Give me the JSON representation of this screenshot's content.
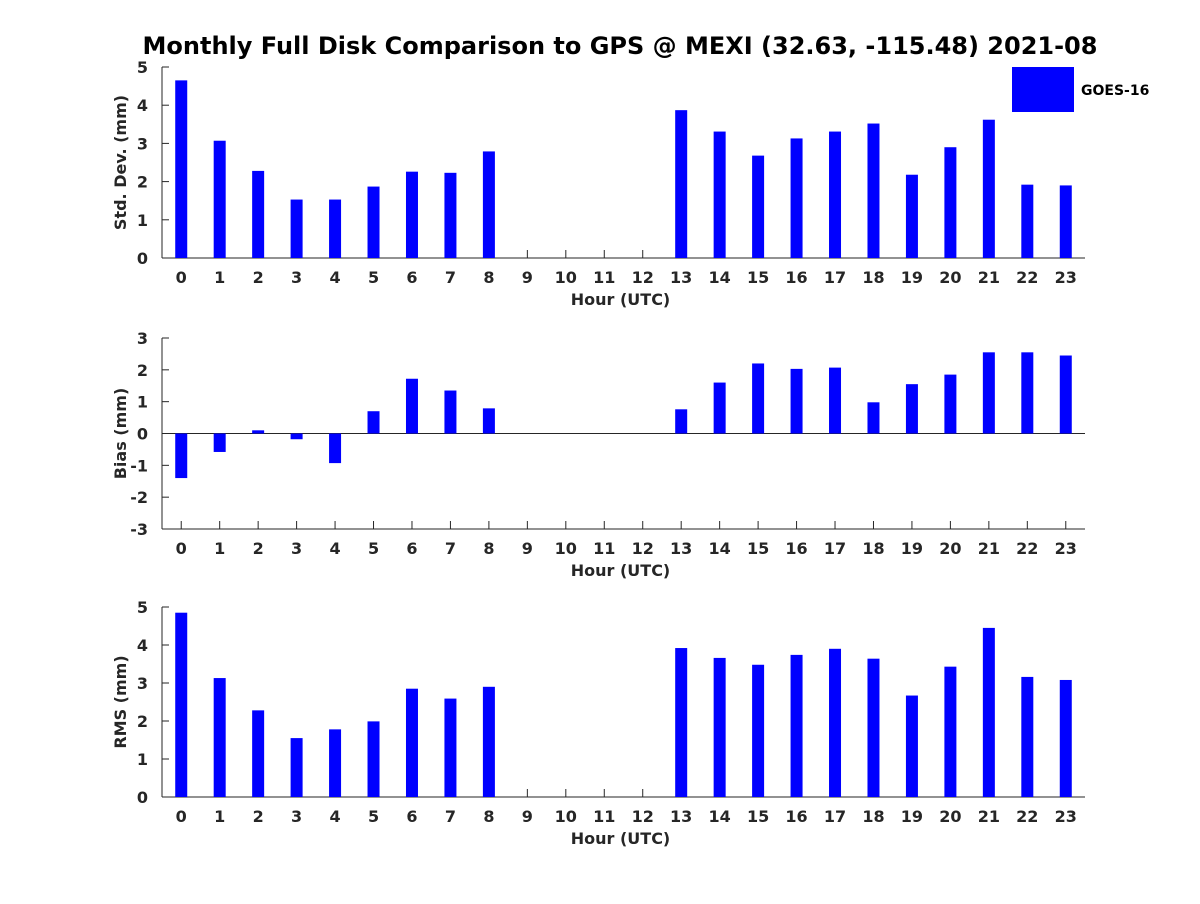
{
  "title": "Monthly Full Disk Comparison to GPS @ MEXI (32.63, -115.48) 2021-08",
  "legend": {
    "label": "GOES-16",
    "color": "#0000ff"
  },
  "bar_color": "#0000ff",
  "chart_data": [
    {
      "type": "bar",
      "xlabel": "Hour (UTC)",
      "ylabel": "Std. Dev. (mm)",
      "ylim": [
        0,
        5
      ],
      "yticks": [
        0,
        1,
        2,
        3,
        4,
        5
      ],
      "categories": [
        "0",
        "1",
        "2",
        "3",
        "4",
        "5",
        "6",
        "7",
        "8",
        "9",
        "10",
        "11",
        "12",
        "13",
        "14",
        "15",
        "16",
        "17",
        "18",
        "19",
        "20",
        "21",
        "22",
        "23"
      ],
      "series": [
        {
          "name": "GOES-16",
          "values": [
            4.65,
            3.07,
            2.28,
            1.53,
            1.53,
            1.87,
            2.26,
            2.23,
            2.79,
            null,
            null,
            null,
            null,
            3.87,
            3.31,
            2.68,
            3.13,
            3.31,
            3.52,
            2.18,
            2.9,
            3.62,
            1.92,
            1.9
          ]
        }
      ]
    },
    {
      "type": "bar",
      "xlabel": "Hour (UTC)",
      "ylabel": "Bias (mm)",
      "ylim": [
        -3,
        3
      ],
      "yticks": [
        -3,
        -2,
        -1,
        0,
        1,
        2,
        3
      ],
      "categories": [
        "0",
        "1",
        "2",
        "3",
        "4",
        "5",
        "6",
        "7",
        "8",
        "9",
        "10",
        "11",
        "12",
        "13",
        "14",
        "15",
        "16",
        "17",
        "18",
        "19",
        "20",
        "21",
        "22",
        "23"
      ],
      "series": [
        {
          "name": "GOES-16",
          "values": [
            -1.4,
            -0.58,
            0.1,
            -0.18,
            -0.93,
            0.7,
            1.72,
            1.35,
            0.79,
            null,
            null,
            null,
            null,
            0.76,
            1.6,
            2.2,
            2.03,
            2.07,
            0.98,
            1.55,
            1.85,
            2.55,
            2.55,
            2.45
          ]
        }
      ]
    },
    {
      "type": "bar",
      "xlabel": "Hour (UTC)",
      "ylabel": "RMS (mm)",
      "ylim": [
        0,
        5
      ],
      "yticks": [
        0,
        1,
        2,
        3,
        4,
        5
      ],
      "categories": [
        "0",
        "1",
        "2",
        "3",
        "4",
        "5",
        "6",
        "7",
        "8",
        "9",
        "10",
        "11",
        "12",
        "13",
        "14",
        "15",
        "16",
        "17",
        "18",
        "19",
        "20",
        "21",
        "22",
        "23"
      ],
      "series": [
        {
          "name": "GOES-16",
          "values": [
            4.85,
            3.13,
            2.28,
            1.55,
            1.78,
            1.99,
            2.85,
            2.59,
            2.9,
            null,
            null,
            null,
            null,
            3.92,
            3.66,
            3.48,
            3.74,
            3.9,
            3.64,
            2.67,
            3.43,
            4.45,
            3.16,
            3.08
          ]
        }
      ]
    }
  ]
}
